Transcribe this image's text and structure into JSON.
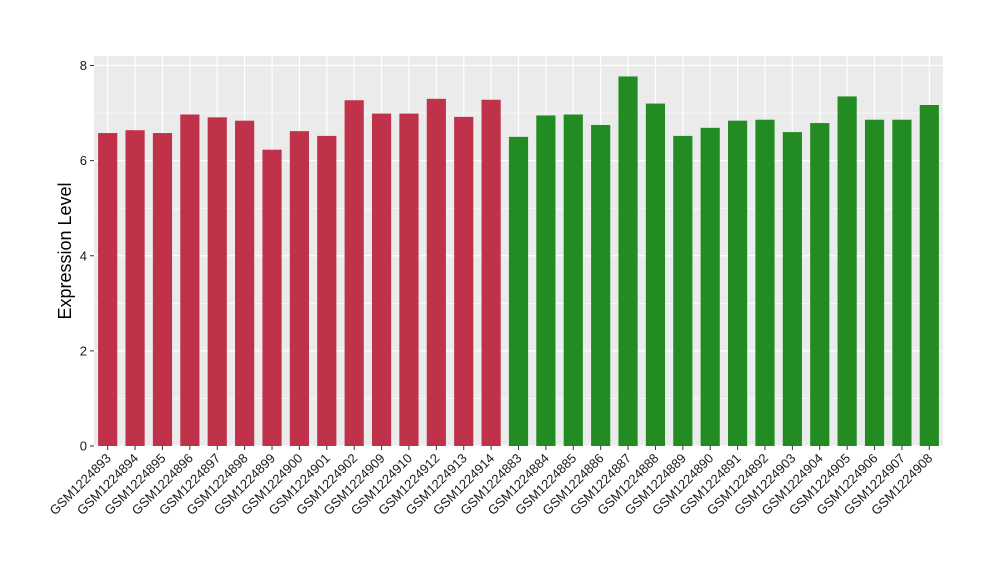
{
  "chart_data": {
    "type": "bar",
    "ylabel": "Expression Level",
    "xlabel": "",
    "ylim": [
      0,
      8.2
    ],
    "yticks": [
      0,
      2,
      4,
      6,
      8
    ],
    "grid": true,
    "panel_background": "#ebebeb",
    "grid_color": "#ffffff",
    "categories": [
      "GSM1224893",
      "GSM1224894",
      "GSM1224895",
      "GSM1224896",
      "GSM1224897",
      "GSM1224898",
      "GSM1224899",
      "GSM1224900",
      "GSM1224901",
      "GSM1224902",
      "GSM1224909",
      "GSM1224910",
      "GSM1224912",
      "GSM1224913",
      "GSM1224914",
      "GSM1224883",
      "GSM1224884",
      "GSM1224885",
      "GSM1224886",
      "GSM1224887",
      "GSM1224888",
      "GSM1224889",
      "GSM1224890",
      "GSM1224891",
      "GSM1224892",
      "GSM1224903",
      "GSM1224904",
      "GSM1224905",
      "GSM1224906",
      "GSM1224907",
      "GSM1224908"
    ],
    "values": [
      6.58,
      6.64,
      6.58,
      6.97,
      6.91,
      6.84,
      6.23,
      6.62,
      6.52,
      7.27,
      6.99,
      6.99,
      7.3,
      6.92,
      7.28,
      6.5,
      6.95,
      6.97,
      6.75,
      7.77,
      7.2,
      6.52,
      6.69,
      6.84,
      6.86,
      6.6,
      6.79,
      7.35,
      6.86,
      6.86,
      7.17
    ],
    "colors": [
      "#c0314a",
      "#c0314a",
      "#c0314a",
      "#c0314a",
      "#c0314a",
      "#c0314a",
      "#c0314a",
      "#c0314a",
      "#c0314a",
      "#c0314a",
      "#c0314a",
      "#c0314a",
      "#c0314a",
      "#c0314a",
      "#c0314a",
      "#228b22",
      "#228b22",
      "#228b22",
      "#228b22",
      "#228b22",
      "#228b22",
      "#228b22",
      "#228b22",
      "#228b22",
      "#228b22",
      "#228b22",
      "#228b22",
      "#228b22",
      "#228b22",
      "#228b22",
      "#228b22"
    ]
  }
}
